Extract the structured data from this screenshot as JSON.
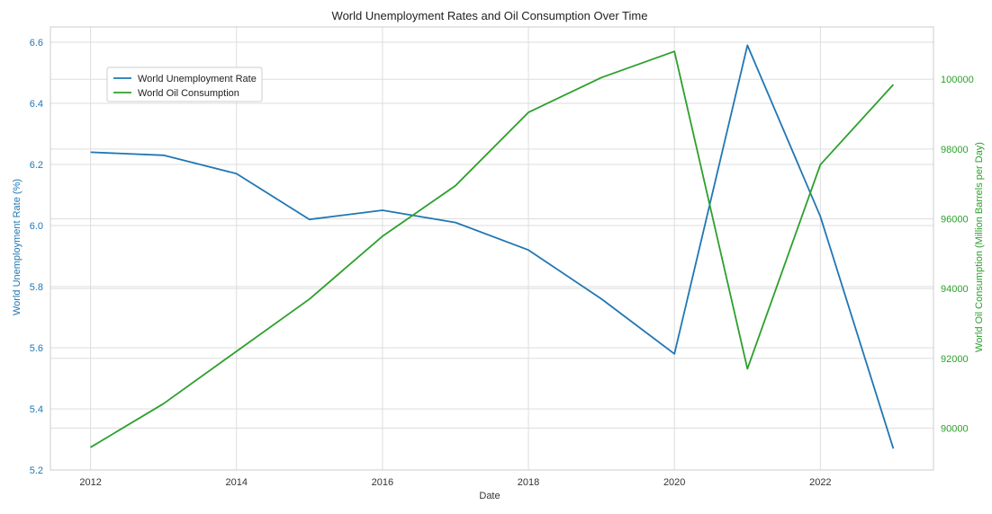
{
  "chart_data": {
    "type": "line",
    "title": "World Unemployment Rates and Oil Consumption Over Time",
    "xlabel": "Date",
    "ylabel_left": "World Unemployment Rate (%)",
    "ylabel_right": "World Oil Consumption (Million Barrels per Day)",
    "x": [
      2012,
      2013,
      2014,
      2015,
      2016,
      2017,
      2018,
      2019,
      2020,
      2021,
      2022,
      2023
    ],
    "xlim": [
      2011.45,
      2023.55
    ],
    "xticks": [
      2012,
      2014,
      2016,
      2018,
      2020,
      2022
    ],
    "ylim_left": [
      5.2,
      6.65
    ],
    "yticks_left": [
      "5.2",
      "5.4",
      "5.6",
      "5.8",
      "6.0",
      "6.2",
      "6.4",
      "6.6"
    ],
    "ylim_right": [
      88800,
      101500
    ],
    "yticks_right": [
      "90000",
      "92000",
      "94000",
      "96000",
      "98000",
      "100000"
    ],
    "grid": true,
    "legend_position": "upper-left",
    "series": [
      {
        "name": "World Unemployment Rate",
        "axis": "left",
        "color": "#1f77b4",
        "values": [
          6.24,
          6.23,
          6.17,
          6.02,
          6.05,
          6.01,
          5.92,
          5.76,
          5.58,
          6.59,
          6.03,
          5.27
        ]
      },
      {
        "name": "World Oil Consumption",
        "axis": "right",
        "color": "#2ca02c",
        "values": [
          89450,
          90700,
          92200,
          93700,
          95500,
          96950,
          99050,
          100050,
          100800,
          91700,
          97550,
          99850
        ]
      }
    ]
  }
}
